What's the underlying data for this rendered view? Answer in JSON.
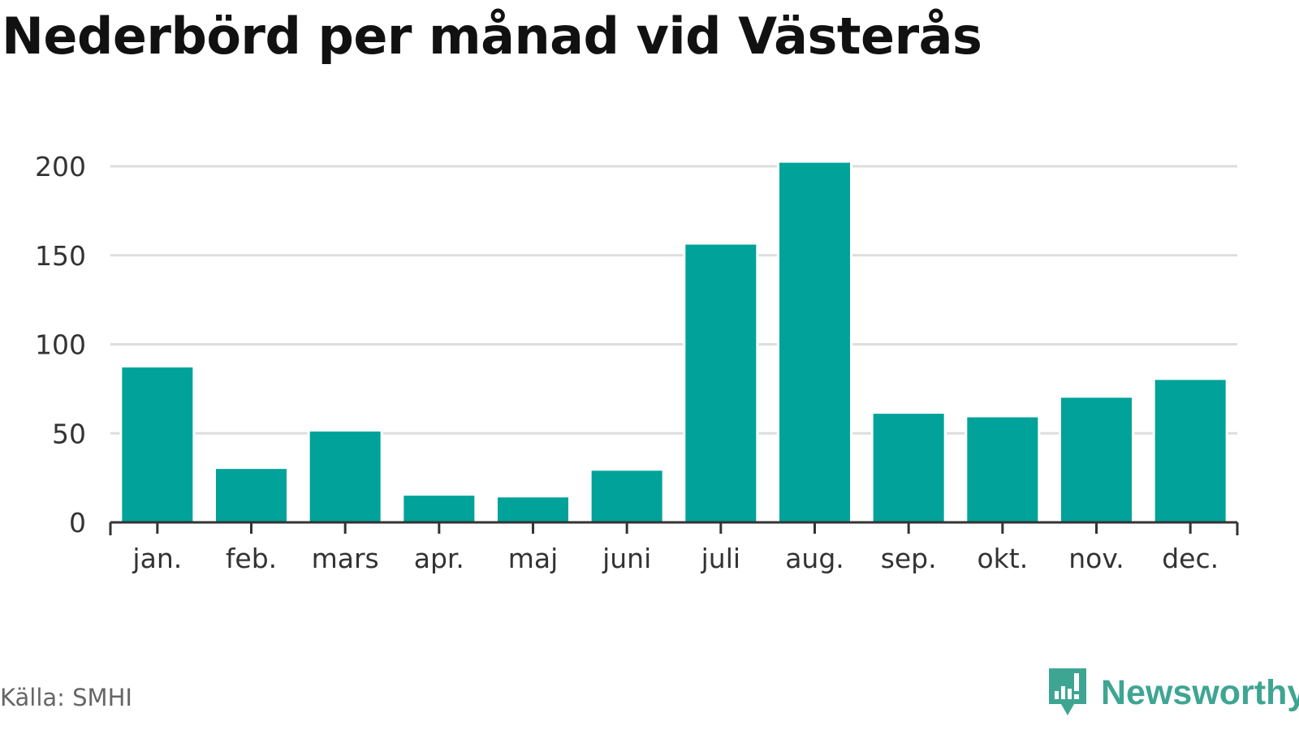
{
  "title": "Nederbörd per månad vid Västerås",
  "source": "Källa: SMHI",
  "brand": {
    "name": "Newsworthy",
    "logo_icon": "newsworthy-logo-icon"
  },
  "colors": {
    "bar": "#00a29a",
    "grid": "#dddddd",
    "axis": "#333333",
    "text": "#333333",
    "brand": "#3fa593"
  },
  "chart_data": {
    "type": "bar",
    "title": "Nederbörd per månad vid Västerås",
    "xlabel": "",
    "ylabel": "",
    "categories": [
      "jan.",
      "feb.",
      "mars",
      "apr.",
      "maj",
      "juni",
      "juli",
      "aug.",
      "sep.",
      "okt.",
      "nov.",
      "dec."
    ],
    "values": [
      87,
      30,
      51,
      15,
      14,
      29,
      156,
      202,
      61,
      59,
      70,
      80
    ],
    "yticks": [
      0,
      50,
      100,
      150,
      200
    ],
    "ylim": [
      0,
      200
    ],
    "grid": true,
    "legend": "none"
  }
}
